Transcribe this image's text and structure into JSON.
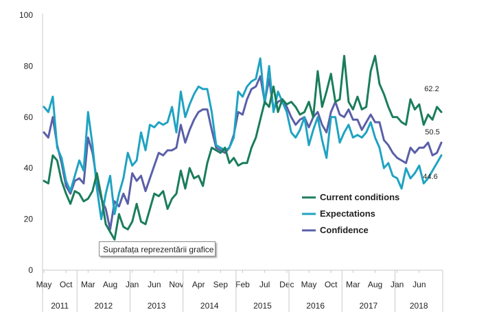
{
  "chart_data": {
    "type": "line",
    "title": "",
    "xlabel": "",
    "ylabel": "",
    "ylim": [
      0,
      100
    ],
    "yticks": [
      0,
      20,
      40,
      60,
      80,
      100
    ],
    "month_labels": [
      "May",
      "Oct",
      "Mar",
      "Aug",
      "Jan",
      "Jun",
      "Nov",
      "Apr",
      "Sep",
      "Feb",
      "Jul",
      "Dec",
      "May",
      "Oct",
      "Mar",
      "Aug",
      "Jan",
      "Jun"
    ],
    "years": [
      "2011",
      "2012",
      "2013",
      "2014",
      "2015",
      "2016",
      "2017",
      "2018"
    ],
    "tooltip": "Suprafața reprezentării grafice",
    "series": [
      {
        "name": "Current conditions",
        "color": "#1a7d5a",
        "end_label": "62.2",
        "values": [
          35,
          34,
          45,
          43,
          35,
          30,
          26,
          31,
          30,
          27,
          28,
          31,
          38,
          29,
          18,
          15,
          12,
          22,
          17,
          16,
          19,
          26,
          19,
          18,
          24,
          30,
          29,
          31,
          24,
          28,
          30,
          39,
          32,
          40,
          36,
          37,
          33,
          42,
          48,
          47,
          46,
          48,
          42,
          44,
          41,
          42,
          42,
          48,
          52,
          59,
          66,
          64,
          72,
          62,
          67,
          65,
          66,
          64,
          61,
          62,
          66,
          60,
          78,
          64,
          70,
          77,
          66,
          67,
          84,
          66,
          63,
          68,
          63,
          64,
          78,
          84,
          73,
          69,
          64,
          60,
          60,
          58,
          57,
          67,
          63,
          65,
          57,
          61,
          59,
          64,
          62
        ]
      },
      {
        "name": "Expectations",
        "color": "#1fa3c2",
        "end_label": "44.6",
        "values": [
          64,
          62,
          68,
          48,
          44,
          35,
          31,
          37,
          43,
          39,
          62,
          49,
          32,
          20,
          30,
          37,
          22,
          30,
          36,
          46,
          41,
          43,
          54,
          47,
          57,
          56,
          58,
          57,
          58,
          64,
          54,
          70,
          60,
          65,
          69,
          72,
          71,
          71,
          62,
          49,
          48,
          47,
          48,
          52,
          70,
          68,
          72,
          74,
          75,
          83,
          65,
          80,
          62,
          70,
          66,
          62,
          54,
          52,
          55,
          60,
          49,
          55,
          60,
          51,
          44,
          60,
          60,
          50,
          54,
          57,
          52,
          53,
          52,
          54,
          58,
          52,
          48,
          40,
          42,
          37,
          36,
          32,
          40,
          36,
          38,
          41,
          34,
          36,
          39,
          42,
          45
        ]
      },
      {
        "name": "Confidence",
        "color": "#5a5fa8",
        "end_label": "50.5",
        "values": [
          54,
          52,
          60,
          49,
          42,
          33,
          30,
          35,
          36,
          34,
          52,
          46,
          35,
          28,
          24,
          16,
          27,
          25,
          30,
          26,
          38,
          35,
          37,
          31,
          36,
          41,
          46,
          45,
          47,
          47,
          48,
          57,
          50,
          55,
          59,
          62,
          63,
          63,
          55,
          48,
          47,
          46,
          48,
          53,
          62,
          61,
          67,
          71,
          72,
          76,
          66,
          75,
          63,
          66,
          67,
          64,
          60,
          57,
          59,
          60,
          56,
          60,
          62,
          57,
          54,
          62,
          66,
          61,
          60,
          63,
          59,
          59,
          55,
          58,
          61,
          58,
          58,
          51,
          49,
          46,
          44,
          43,
          42,
          48,
          46,
          48,
          48,
          50,
          45,
          46,
          50
        ]
      }
    ]
  }
}
